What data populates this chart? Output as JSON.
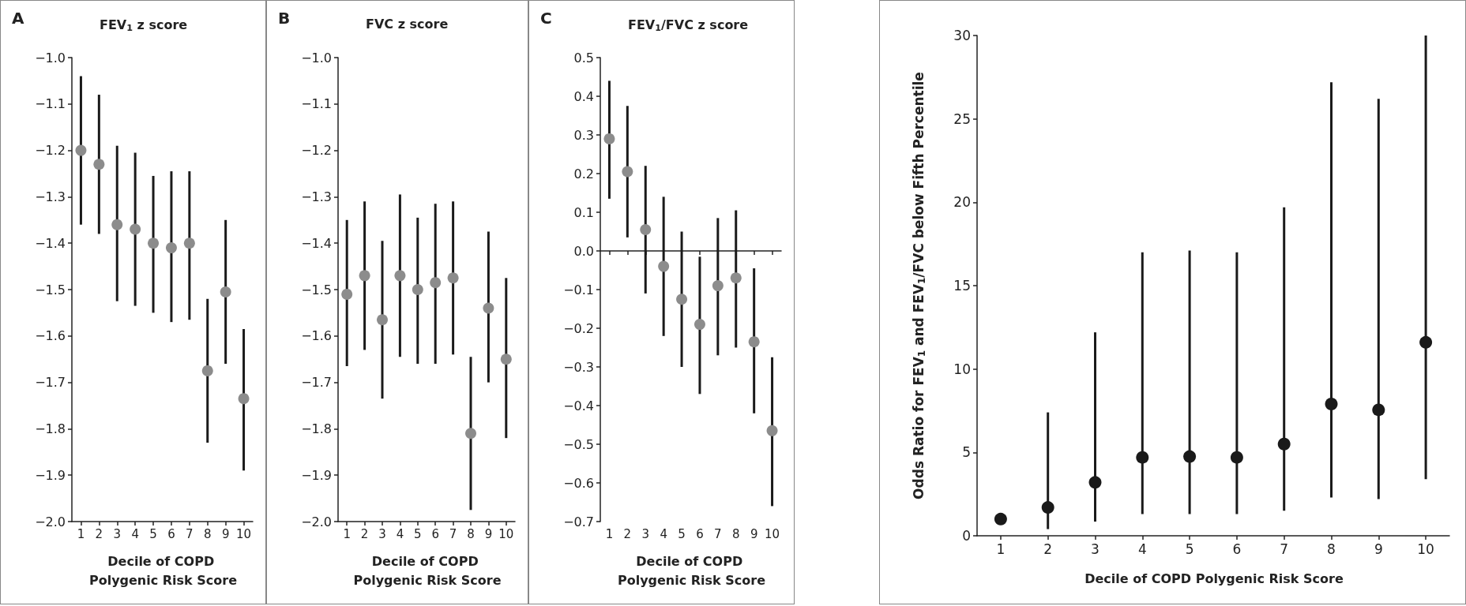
{
  "chart_data": [
    {
      "type": "scatter",
      "title": "FEV$_{1}$ z score",
      "annotations": [
        "A"
      ],
      "xlabel": "Decile of COPD Polygenic Risk Score",
      "categories": [
        "1",
        "2",
        "3",
        "4",
        "5",
        "6",
        "7",
        "8",
        "9",
        "10"
      ],
      "marker": "circle",
      "series": [
        {
          "color": "#8c8c8c",
          "values": [
            -1.2,
            -1.23,
            -1.36,
            -1.37,
            -1.4,
            -1.41,
            -1.4,
            -1.675,
            -1.505,
            -1.735
          ],
          "errors": [
            [
              -1.36,
              -1.04
            ],
            [
              -1.38,
              -1.08
            ],
            [
              -1.525,
              -1.19
            ],
            [
              -1.535,
              -1.205
            ],
            [
              -1.55,
              -1.255
            ],
            [
              -1.57,
              -1.245
            ],
            [
              -1.565,
              -1.245
            ],
            [
              -1.83,
              -1.52
            ],
            [
              -1.66,
              -1.35
            ],
            [
              -1.89,
              -1.585
            ]
          ]
        }
      ],
      "ylim": [
        -2.0,
        -1.0
      ],
      "yticks": [
        {
          "value": -2.0,
          "label": "−2.0"
        },
        {
          "value": -1.9,
          "label": "−1.9"
        },
        {
          "value": -1.8,
          "label": "−1.8"
        },
        {
          "value": -1.7,
          "label": "−1.7"
        },
        {
          "value": -1.6,
          "label": "−1.6"
        },
        {
          "value": -1.5,
          "label": "−1.5"
        },
        {
          "value": -1.4,
          "label": "−1.4"
        },
        {
          "value": -1.3,
          "label": "−1.3"
        },
        {
          "value": -1.2,
          "label": "−1.2"
        },
        {
          "value": -1.1,
          "label": "−1.1"
        },
        {
          "value": -1.0,
          "label": "−1.0"
        }
      ]
    },
    {
      "type": "scatter",
      "title": "FVC z score",
      "annotations": [
        "B"
      ],
      "xlabel": "Decile of COPD Polygenic Risk Score",
      "categories": [
        "1",
        "2",
        "3",
        "4",
        "5",
        "6",
        "7",
        "8",
        "9",
        "10"
      ],
      "marker": "circle",
      "series": [
        {
          "color": "#8c8c8c",
          "values": [
            -1.51,
            -1.47,
            -1.565,
            -1.47,
            -1.5,
            -1.485,
            -1.475,
            -1.81,
            -1.54,
            -1.65
          ],
          "errors": [
            [
              -1.665,
              -1.35
            ],
            [
              -1.63,
              -1.31
            ],
            [
              -1.735,
              -1.395
            ],
            [
              -1.645,
              -1.295
            ],
            [
              -1.66,
              -1.345
            ],
            [
              -1.66,
              -1.315
            ],
            [
              -1.64,
              -1.31
            ],
            [
              -1.975,
              -1.645
            ],
            [
              -1.7,
              -1.375
            ],
            [
              -1.82,
              -1.475
            ]
          ]
        }
      ],
      "ylim": [
        -2.0,
        -1.0
      ],
      "yticks": [
        {
          "value": -2.0,
          "label": "−2.0"
        },
        {
          "value": -1.9,
          "label": "−1.9"
        },
        {
          "value": -1.8,
          "label": "−1.8"
        },
        {
          "value": -1.7,
          "label": "−1.7"
        },
        {
          "value": -1.6,
          "label": "−1.6"
        },
        {
          "value": -1.5,
          "label": "−1.5"
        },
        {
          "value": -1.4,
          "label": "−1.4"
        },
        {
          "value": -1.3,
          "label": "−1.3"
        },
        {
          "value": -1.2,
          "label": "−1.2"
        },
        {
          "value": -1.1,
          "label": "−1.1"
        },
        {
          "value": -1.0,
          "label": "−1.0"
        }
      ]
    },
    {
      "type": "scatter",
      "title": "FEV$_{1}$/FVC z score",
      "annotations": [
        "C"
      ],
      "xlabel": "Decile of COPD Polygenic Risk Score",
      "categories": [
        "1",
        "2",
        "3",
        "4",
        "5",
        "6",
        "7",
        "8",
        "9",
        "10"
      ],
      "marker": "circle",
      "series": [
        {
          "color": "#8c8c8c",
          "values": [
            0.29,
            0.205,
            0.055,
            -0.04,
            -0.125,
            -0.19,
            -0.09,
            -0.07,
            -0.235,
            -0.465
          ],
          "errors": [
            [
              0.135,
              0.44
            ],
            [
              0.035,
              0.375
            ],
            [
              -0.11,
              0.22
            ],
            [
              -0.22,
              0.14
            ],
            [
              -0.3,
              0.05
            ],
            [
              -0.37,
              -0.015
            ],
            [
              -0.27,
              0.085
            ],
            [
              -0.25,
              0.105
            ],
            [
              -0.42,
              -0.045
            ],
            [
              -0.66,
              -0.275
            ]
          ]
        }
      ],
      "ylim": [
        -0.7,
        0.5
      ],
      "yticks": [
        {
          "value": -0.7,
          "label": "−0.7"
        },
        {
          "value": -0.6,
          "label": "−0.6"
        },
        {
          "value": -0.5,
          "label": "−0.5"
        },
        {
          "value": -0.4,
          "label": "−0.4"
        },
        {
          "value": -0.3,
          "label": "−0.3"
        },
        {
          "value": -0.2,
          "label": "−0.2"
        },
        {
          "value": -0.1,
          "label": "−0.1"
        },
        {
          "value": 0,
          "label": "0.0"
        },
        0.1,
        0.2,
        0.3,
        0.4,
        0.5
      ]
    },
    {
      "type": "scatter",
      "ylabel": "Odds Ratio for FEV$_{1}$ and FEV$_{1}$/FVC below Fifth Percentile",
      "xlabel": "Decile of COPD Polygenic Risk Score",
      "categories": [
        "1",
        "2",
        "3",
        "4",
        "5",
        "6",
        "7",
        "8",
        "9",
        "10"
      ],
      "marker": "circle",
      "series": [
        {
          "color": "#1a1a1a",
          "values": [
            1.0,
            1.7,
            3.2,
            4.7,
            4.75,
            4.7,
            5.5,
            7.9,
            7.55,
            11.6
          ],
          "errors": [
            null,
            [
              0.4,
              7.4
            ],
            [
              0.85,
              12.2
            ],
            [
              1.3,
              17.0
            ],
            [
              1.3,
              17.1
            ],
            [
              1.3,
              17.0
            ],
            [
              1.5,
              19.7
            ],
            [
              2.3,
              27.2
            ],
            [
              2.2,
              26.2
            ],
            [
              3.4,
              30
            ]
          ]
        }
      ],
      "ylim": [
        0,
        30
      ],
      "yticks": [
        0,
        5,
        10,
        15,
        20,
        25,
        30
      ]
    }
  ]
}
